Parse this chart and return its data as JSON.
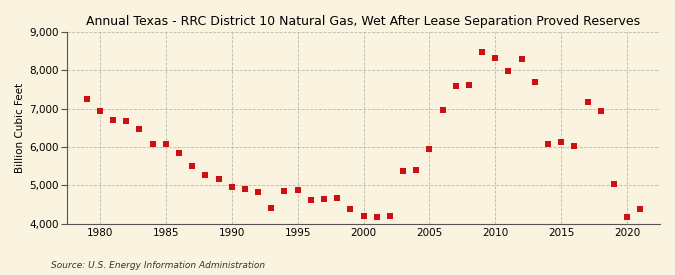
{
  "title": "Annual Texas - RRC District 10 Natural Gas, Wet After Lease Separation Proved Reserves",
  "ylabel": "Billion Cubic Feet",
  "source": "Source: U.S. Energy Information Administration",
  "background_color": "#faf3e0",
  "plot_bg_color": "#faf3e0",
  "marker_color": "#cc1111",
  "years": [
    1979,
    1980,
    1981,
    1982,
    1983,
    1984,
    1985,
    1986,
    1987,
    1988,
    1989,
    1990,
    1991,
    1992,
    1993,
    1994,
    1995,
    1996,
    1997,
    1998,
    1999,
    2000,
    2001,
    2002,
    2003,
    2004,
    2005,
    2006,
    2007,
    2008,
    2009,
    2010,
    2011,
    2012,
    2013,
    2014,
    2015,
    2016,
    2017,
    2018,
    2019,
    2020,
    2021
  ],
  "values": [
    7250,
    6950,
    6700,
    6680,
    6480,
    6070,
    6080,
    5850,
    5500,
    5270,
    5170,
    4950,
    4900,
    4830,
    4420,
    4860,
    4870,
    4620,
    4650,
    4680,
    4380,
    4200,
    4170,
    4210,
    5370,
    5400,
    5940,
    6960,
    7600,
    7620,
    8490,
    8310,
    7990,
    8290,
    7700,
    6070,
    6120,
    6020,
    7170,
    6930,
    5050,
    4180,
    4380
  ],
  "xlim": [
    1977.5,
    2022.5
  ],
  "ylim": [
    4000,
    9000
  ],
  "yticks": [
    4000,
    5000,
    6000,
    7000,
    8000,
    9000
  ],
  "xticks": [
    1980,
    1985,
    1990,
    1995,
    2000,
    2005,
    2010,
    2015,
    2020
  ],
  "title_fontsize": 9.0,
  "ylabel_fontsize": 7.5,
  "tick_fontsize": 7.5,
  "source_fontsize": 6.5,
  "marker_size": 16
}
